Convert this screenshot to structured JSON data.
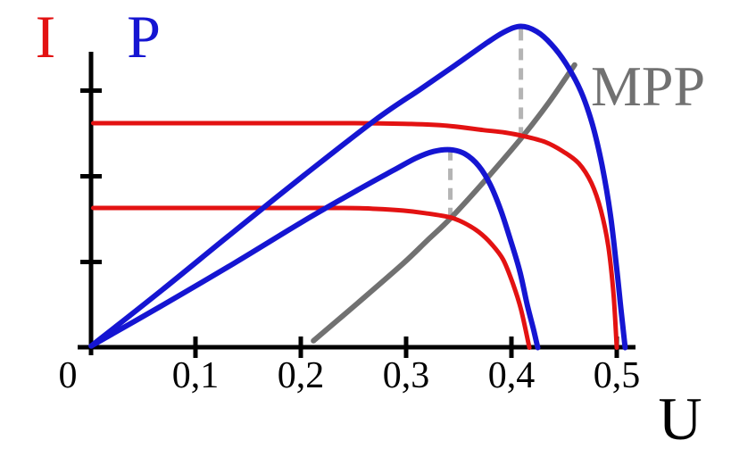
{
  "chart_data": {
    "type": "line",
    "description": "Solar cell current-voltage (I) and power-voltage (P) characteristic curves for two irradiance levels, with maximum power point locus (MPP)",
    "x_axis": {
      "label": "U",
      "tick_labels": [
        "0",
        "0,1",
        "0,2",
        "0,3",
        "0,4",
        "0,5"
      ],
      "tick_values": [
        0,
        0.1,
        0.2,
        0.3,
        0.4,
        0.5
      ],
      "range": [
        0,
        0.55
      ],
      "grid": false
    },
    "y_axis": {
      "label_current": "I",
      "label_power": "P",
      "tick_values": [
        1,
        2,
        3
      ],
      "tick_labels": [],
      "range": [
        0,
        3.9
      ],
      "grid": false
    },
    "mpp_label": "MPP",
    "colors": {
      "current": "#e31212",
      "power": "#1515d2",
      "mpp_line": "#717171",
      "mpp_label": "#717171",
      "guide": "#b4b4b4",
      "axis": "#000000"
    },
    "series": [
      {
        "id": "mpp-locus",
        "name": "MPP locus line",
        "color_key": "mpp_line",
        "width": 6,
        "points": [
          [
            0.212,
            0.08
          ],
          [
            0.254,
            0.52
          ],
          [
            0.297,
            0.98
          ],
          [
            0.32,
            1.25
          ],
          [
            0.343,
            1.52
          ],
          [
            0.377,
            1.98
          ],
          [
            0.411,
            2.47
          ],
          [
            0.436,
            2.87
          ],
          [
            0.46,
            3.3
          ]
        ]
      },
      {
        "id": "iv-curve-strong",
        "name": "I-V curve, higher irradiance",
        "color_key": "current",
        "width": 5,
        "points": [
          [
            0.003,
            2.62
          ],
          [
            0.12,
            2.62
          ],
          [
            0.25,
            2.62
          ],
          [
            0.305,
            2.61
          ],
          [
            0.339,
            2.59
          ],
          [
            0.373,
            2.54
          ],
          [
            0.394,
            2.51
          ],
          [
            0.411,
            2.47
          ],
          [
            0.432,
            2.4
          ],
          [
            0.449,
            2.29
          ],
          [
            0.464,
            2.15
          ],
          [
            0.476,
            1.92
          ],
          [
            0.485,
            1.6
          ],
          [
            0.492,
            1.18
          ],
          [
            0.497,
            0.61
          ],
          [
            0.5,
            0.0
          ]
        ]
      },
      {
        "id": "iv-curve-weak",
        "name": "I-V curve, lower irradiance",
        "color_key": "current",
        "width": 5,
        "points": [
          [
            0.003,
            1.63
          ],
          [
            0.12,
            1.63
          ],
          [
            0.24,
            1.63
          ],
          [
            0.271,
            1.62
          ],
          [
            0.297,
            1.6
          ],
          [
            0.318,
            1.57
          ],
          [
            0.342,
            1.52
          ],
          [
            0.356,
            1.45
          ],
          [
            0.369,
            1.35
          ],
          [
            0.381,
            1.21
          ],
          [
            0.392,
            1.03
          ],
          [
            0.401,
            0.76
          ],
          [
            0.409,
            0.45
          ],
          [
            0.417,
            0.0
          ]
        ]
      },
      {
        "id": "pv-curve-weak",
        "name": "P-V curve, lower irradiance",
        "color_key": "power",
        "width": 6,
        "points": [
          [
            0.001,
            0.02
          ],
          [
            0.068,
            0.49
          ],
          [
            0.136,
            0.98
          ],
          [
            0.203,
            1.48
          ],
          [
            0.254,
            1.84
          ],
          [
            0.288,
            2.07
          ],
          [
            0.309,
            2.21
          ],
          [
            0.326,
            2.29
          ],
          [
            0.342,
            2.31
          ],
          [
            0.356,
            2.26
          ],
          [
            0.369,
            2.12
          ],
          [
            0.38,
            1.9
          ],
          [
            0.39,
            1.6
          ],
          [
            0.399,
            1.26
          ],
          [
            0.408,
            0.89
          ],
          [
            0.415,
            0.5
          ],
          [
            0.421,
            0.21
          ],
          [
            0.425,
            0.0
          ]
        ]
      },
      {
        "id": "pv-curve-strong",
        "name": "P-V curve, higher irradiance",
        "color_key": "power",
        "width": 6,
        "points": [
          [
            0.001,
            0.02
          ],
          [
            0.068,
            0.67
          ],
          [
            0.136,
            1.35
          ],
          [
            0.203,
            2.01
          ],
          [
            0.271,
            2.66
          ],
          [
            0.314,
            3.02
          ],
          [
            0.347,
            3.3
          ],
          [
            0.377,
            3.56
          ],
          [
            0.394,
            3.69
          ],
          [
            0.409,
            3.75
          ],
          [
            0.424,
            3.69
          ],
          [
            0.438,
            3.54
          ],
          [
            0.452,
            3.31
          ],
          [
            0.466,
            2.99
          ],
          [
            0.477,
            2.6
          ],
          [
            0.486,
            2.13
          ],
          [
            0.494,
            1.55
          ],
          [
            0.5,
            0.92
          ],
          [
            0.504,
            0.45
          ],
          [
            0.508,
            0.0
          ]
        ]
      }
    ],
    "mpp_guides": [
      {
        "u": 0.342,
        "v_from": 1.53,
        "v_to": 2.32
      },
      {
        "u": 0.409,
        "v_from": 2.47,
        "v_to": 3.72
      }
    ]
  }
}
